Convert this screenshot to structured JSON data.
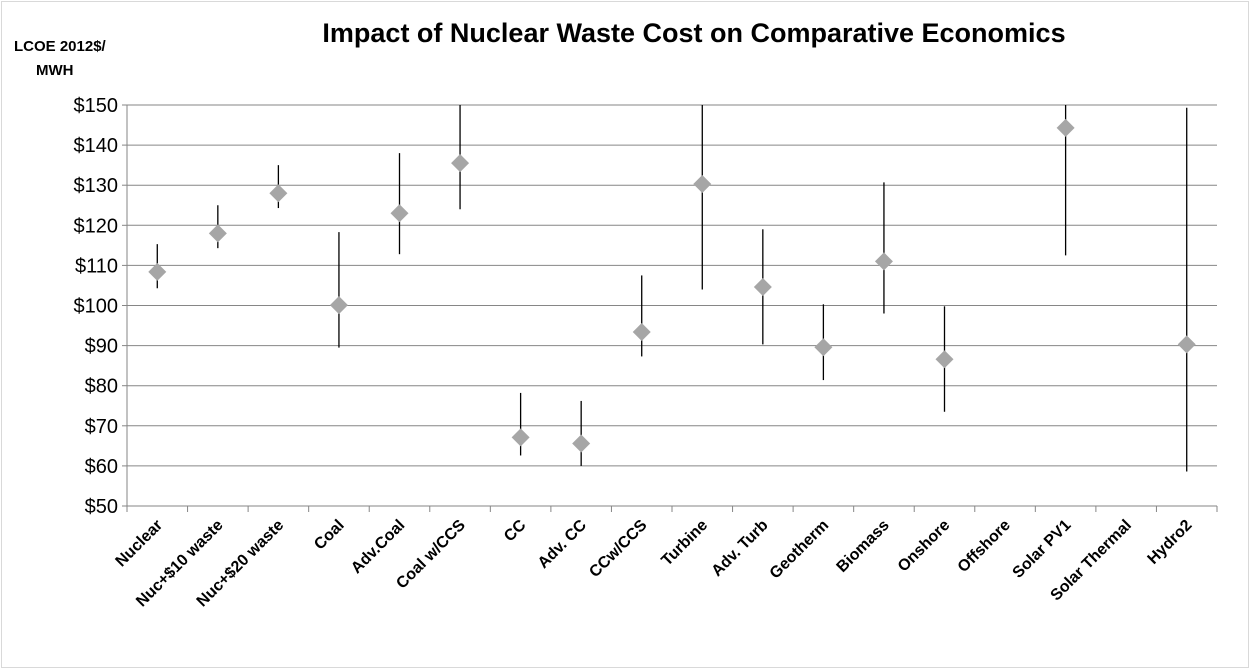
{
  "chart_data": {
    "type": "scatter",
    "title": "Impact of Nuclear Waste Cost on Comparative Economics",
    "ylabel_lines": [
      "LCOE 2012$/",
      "MWH"
    ],
    "xlabel": "",
    "ylim": [
      50,
      150
    ],
    "yticks": [
      50,
      60,
      70,
      80,
      90,
      100,
      110,
      120,
      130,
      140,
      150
    ],
    "ytick_labels": [
      "$50",
      "$60",
      "$70",
      "$80",
      "$90",
      "$100",
      "$110",
      "$120",
      "$130",
      "$140",
      "$150"
    ],
    "grid": true,
    "legend": "none",
    "categories": [
      "Nuclear",
      "Nuc+$10 waste",
      "Nuc+$20 waste",
      "Coal",
      "Adv.Coal",
      "Coal w/CCS",
      "CC",
      "Adv. CC",
      "CCw/CCS",
      "Turbine",
      "Adv. Turb",
      "Geotherm",
      "Biomass",
      "Onshore",
      "Offshore",
      "Solar PV1",
      "Solar Thermal",
      "Hydro2"
    ],
    "series": [
      {
        "values": [
          108.4,
          118.0,
          128.0,
          100.1,
          123.0,
          135.5,
          67.1,
          65.6,
          93.4,
          130.3,
          104.6,
          89.6,
          111.0,
          86.6,
          null,
          144.3,
          null,
          90.3
        ],
        "low": [
          104.3,
          114.3,
          124.3,
          89.5,
          112.8,
          124.0,
          62.6,
          60.0,
          87.3,
          104.0,
          90.3,
          81.4,
          98.0,
          73.5,
          null,
          112.5,
          null,
          58.6
        ],
        "high": [
          115.3,
          125.0,
          135.0,
          118.3,
          138.0,
          150.0,
          78.2,
          76.2,
          107.5,
          150.0,
          119.0,
          100.3,
          130.7,
          99.8,
          null,
          150.0,
          null,
          149.3
        ]
      }
    ],
    "colors": {
      "marker": "#a6a6a6",
      "error_bar": "#000000",
      "grid": "#868686"
    }
  }
}
